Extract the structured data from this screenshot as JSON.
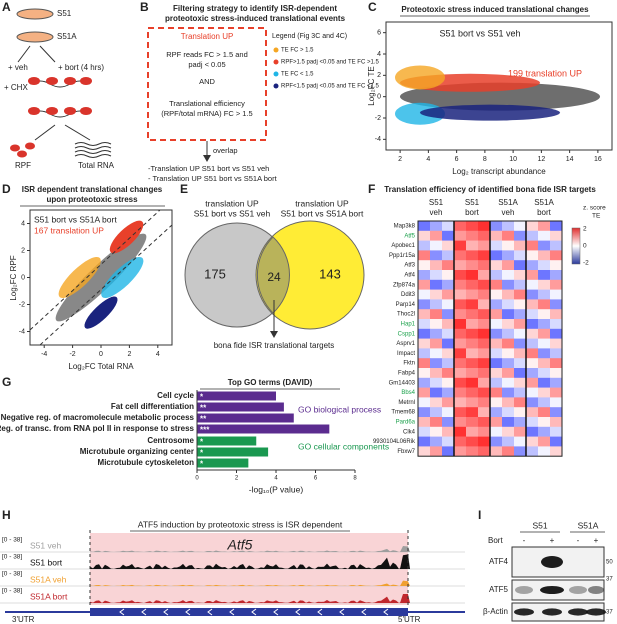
{
  "panel_labels": [
    "A",
    "B",
    "C",
    "D",
    "E",
    "F",
    "G",
    "H",
    "I"
  ],
  "panel_a": {
    "cells": [
      "S51",
      "S51A"
    ],
    "treatments": [
      "+ veh",
      "+ bort (4 hrs)"
    ],
    "chx": "+ CHX",
    "outputs": [
      "RPF",
      "Total RNA"
    ]
  },
  "panel_b": {
    "title": [
      "Filtering strategy to identify ISR-dependent",
      "proteotoxic stress-induced translational events"
    ],
    "box_title": "Translation UP",
    "criterion1": [
      "RPF reads FC > 1.5 and",
      "padj < 0.05"
    ],
    "and": "AND",
    "criterion2": [
      "Translational efficiency",
      "(RPF/total mRNA) FC > 1.5"
    ],
    "legend_title": "Legend (Fig 3C and 4C)",
    "legend": [
      {
        "label": "TE FC > 1.5",
        "color": "#f5a623"
      },
      {
        "label": "RPF>1.5 padj <0.05 and TE FC >1.5",
        "color": "#e8402a"
      },
      {
        "label": "TE FC < 1.5",
        "color": "#1fb5e6"
      },
      {
        "label": "RPF<1.5 padj <0.05 and TE FC <1.5",
        "color": "#1a237e"
      }
    ],
    "overlap": "overlap",
    "results": [
      "-Translation UP S51 bort vs S51 veh",
      "- Translation UP S51 bort vs S51A bort"
    ]
  },
  "panel_c": {
    "title": "Proteotoxic stress induced translational changes",
    "comparison": "S51 bort vs S51 veh",
    "annotation": "199 translation UP",
    "ylabel": "Log₂FC TE",
    "xlabel": "Log₂ transcript abundance",
    "xticks": [
      2,
      4,
      6,
      8,
      10,
      12,
      14,
      16
    ],
    "yticks": [
      6,
      4,
      2,
      0,
      -2,
      -4
    ],
    "xlim": [
      1,
      17
    ],
    "ylim": [
      -5,
      7
    ]
  },
  "panel_d": {
    "title": [
      "ISR dependent translational changes",
      "upon proteotoxic stress"
    ],
    "comparison": "S51 bort vs S51A bort",
    "annotation": "167 translation UP",
    "ylabel": "Log₂FC RPF",
    "xlabel": "Log₂FC Total RNA",
    "xticks": [
      -4,
      -2,
      0,
      2,
      4
    ],
    "yticks": [
      4,
      2,
      0,
      -2,
      -4
    ],
    "xlim": [
      -5,
      5
    ],
    "ylim": [
      -5,
      5
    ]
  },
  "panel_e": {
    "set_a": [
      "translation UP",
      "S51 bort vs S51 veh"
    ],
    "set_b": [
      "translation UP",
      "S51 bort vs S51A bort"
    ],
    "only_a": 175,
    "both": 24,
    "only_b": 143,
    "caption": "bona fide ISR translational targets"
  },
  "panel_f": {
    "title": "Translation efficiency of identified bona fide ISR targets",
    "groups": [
      [
        "S51",
        "veh"
      ],
      [
        "S51",
        "bort"
      ],
      [
        "S51A",
        "veh"
      ],
      [
        "S51A",
        "bort"
      ]
    ],
    "genes": [
      "Map3k8",
      "Atf5",
      "Apobec1",
      "Ppp1r15a",
      "Atf3",
      "Atf4",
      "Zfp874a",
      "Ddit3",
      "Parp14",
      "Thoc2l",
      "Hap1",
      "Cspp1",
      "Asprv1",
      "Impact",
      "Fktn",
      "Fabp4",
      "Gm14403",
      "Bbs4",
      "Metrnl",
      "Tmem68",
      "Pard6a",
      "Clk4",
      "9930104L06Rik",
      "Fbxw7"
    ],
    "highlighted": [
      "Atf5",
      "Hap1",
      "Cspp1",
      "Bbs4",
      "Pard6a"
    ],
    "highlight_color": "#1aa04a",
    "colorbar_title": [
      "z. score",
      "TE"
    ],
    "colorbar_ticks": [
      2,
      0,
      -2
    ]
  },
  "chart_data": [
    {
      "type": "bar",
      "orientation": "horizontal",
      "title": "Top GO terms (DAVID)",
      "categories": [
        "Cell cycle",
        "Fat cell differentiation",
        "Negative reg. of macromolecule metabolic process",
        "Reg. of transc. from RNA pol II in response to stress",
        "Centrosome",
        "Microtubule organizing center",
        "Microtubule cytoskeleton"
      ],
      "values": [
        4.0,
        4.4,
        4.9,
        6.7,
        3.0,
        3.6,
        2.6
      ],
      "colors": [
        "#5b2c8f",
        "#5b2c8f",
        "#5b2c8f",
        "#5b2c8f",
        "#1a9850",
        "#1a9850",
        "#1a9850"
      ],
      "annotations": [
        "*",
        "**",
        "**",
        "***",
        "*",
        "*",
        "*"
      ],
      "groups": [
        {
          "label": "GO biological process",
          "color": "#5b2c8f"
        },
        {
          "label": "GO cellular components",
          "color": "#1a9850"
        }
      ],
      "xlabel": "-log₁₀(P value)",
      "xlim": [
        0,
        8
      ],
      "xticks": [
        0,
        2,
        4,
        6,
        8
      ]
    }
  ],
  "panel_h": {
    "title": "ATF5 induction by proteotoxic stress is ISR dependent",
    "gene": "Atf5",
    "range": "[0 - 38]",
    "tracks": [
      {
        "name": "S51 veh",
        "color": "#9e9e9e"
      },
      {
        "name": "S51 bort",
        "color": "#111111"
      },
      {
        "name": "S51A veh",
        "color": "#f0a030"
      },
      {
        "name": "S51A bort",
        "color": "#c0272d"
      }
    ],
    "utr3": "3'UTR",
    "utr5": "5'UTR"
  },
  "panel_i": {
    "cells": [
      "S51",
      "S51A"
    ],
    "treatment": "Bort",
    "signs": [
      "-",
      "+",
      "-",
      "+"
    ],
    "proteins": [
      "ATF4",
      "ATF5",
      "β-Actin"
    ],
    "markers": [
      50,
      37,
      37
    ]
  }
}
